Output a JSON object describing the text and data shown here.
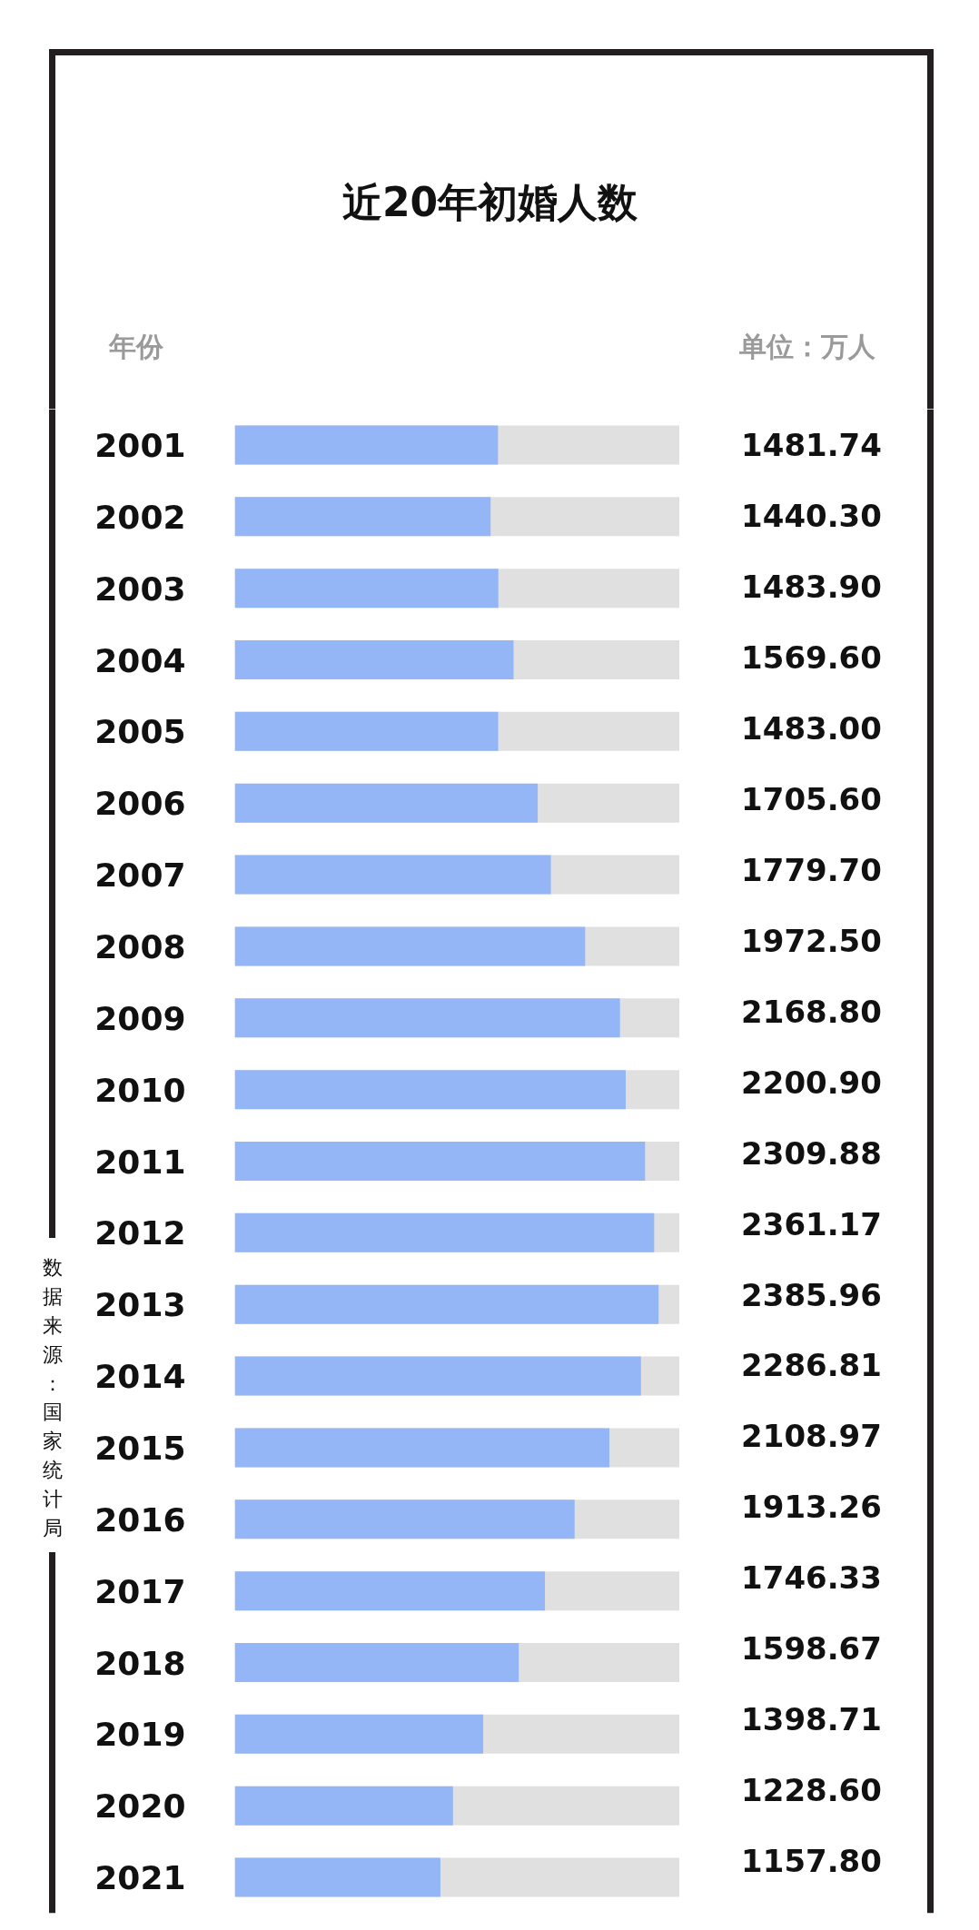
{
  "chart_data": {
    "type": "bar",
    "orientation": "horizontal",
    "title": "近20年初婚人数",
    "ylabel": "年份",
    "annotations": [
      "单位：万人",
      "数据来源：国家统计局"
    ],
    "categories": [
      "2001",
      "2002",
      "2003",
      "2004",
      "2005",
      "2006",
      "2007",
      "2008",
      "2009",
      "2010",
      "2011",
      "2012",
      "2013",
      "2014",
      "2015",
      "2016",
      "2017",
      "2018",
      "2019",
      "2020",
      "2021"
    ],
    "values": [
      1481.74,
      1440.3,
      1483.9,
      1569.6,
      1483.0,
      1705.6,
      1779.7,
      1972.5,
      2168.8,
      2200.9,
      2309.88,
      2361.17,
      2385.96,
      2286.81,
      2108.97,
      1913.26,
      1746.33,
      1598.67,
      1398.71,
      1228.6,
      1157.8
    ],
    "value_labels": [
      "1481.74",
      "1440.30",
      "1483.90",
      "1569.60",
      "1483.00",
      "1705.60",
      "1779.70",
      "1972.50",
      "2168.80",
      "2200.90",
      "2309.88",
      "2361.17",
      "2385.96",
      "2286.81",
      "2108.97",
      "1913.26",
      "1746.33",
      "1598.67",
      "1398.71",
      "1228.60",
      "1157.80"
    ],
    "color": "#94b6f6",
    "tick_labels": "y"
  }
}
